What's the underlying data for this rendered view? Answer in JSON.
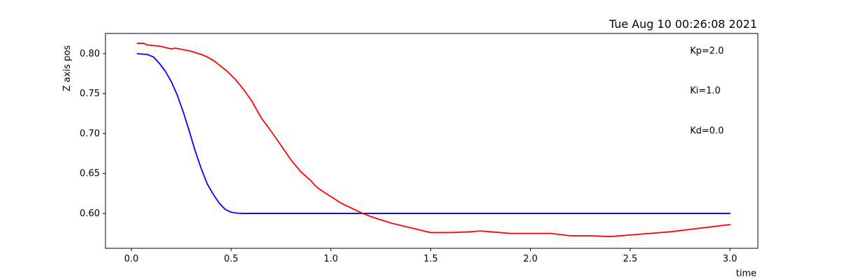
{
  "chart_data": {
    "type": "line",
    "title": "Tue Aug 10 00:26:08 2021",
    "xlabel": "time",
    "ylabel": "Z axis pos",
    "xlim": [
      -0.13,
      3.14
    ],
    "ylim": [
      0.5563,
      0.8253
    ],
    "grid": false,
    "xticks": [
      0.0,
      0.5,
      1.0,
      1.5,
      2.0,
      2.5,
      3.0
    ],
    "xtick_labels": [
      "0.0",
      "0.5",
      "1.0",
      "1.5",
      "2.0",
      "2.5",
      "3.0"
    ],
    "yticks": [
      0.6,
      0.65,
      0.7,
      0.75,
      0.8
    ],
    "ytick_labels": [
      "0.60",
      "0.65",
      "0.70",
      "0.75",
      "0.80"
    ],
    "annotations": [
      {
        "text": "Kp=2.0",
        "x": 2.8,
        "y": 0.8
      },
      {
        "text": "Ki=1.0",
        "x": 2.8,
        "y": 0.75
      },
      {
        "text": "Kd=0.0",
        "x": 2.8,
        "y": 0.7
      }
    ],
    "series": [
      {
        "color": "#0000ff",
        "x": [
          0.03,
          0.08,
          0.11,
          0.14,
          0.17,
          0.2,
          0.23,
          0.26,
          0.29,
          0.32,
          0.35,
          0.38,
          0.41,
          0.44,
          0.47,
          0.5,
          0.53,
          0.56,
          0.6,
          0.7,
          0.9,
          1.2,
          1.5,
          2.0,
          2.5,
          3.0
        ],
        "y": [
          0.8,
          0.799,
          0.796,
          0.788,
          0.778,
          0.765,
          0.748,
          0.727,
          0.703,
          0.678,
          0.656,
          0.637,
          0.624,
          0.613,
          0.605,
          0.6015,
          0.6003,
          0.6,
          0.6,
          0.6,
          0.6,
          0.6,
          0.6,
          0.6,
          0.6,
          0.6
        ]
      },
      {
        "color": "#ff0000",
        "x": [
          0.03,
          0.06,
          0.08,
          0.15,
          0.2,
          0.22,
          0.3,
          0.35,
          0.38,
          0.42,
          0.45,
          0.48,
          0.52,
          0.56,
          0.6,
          0.65,
          0.7,
          0.75,
          0.8,
          0.85,
          0.9,
          0.92,
          0.95,
          1.0,
          1.05,
          1.1,
          1.15,
          1.2,
          1.25,
          1.3,
          1.35,
          1.4,
          1.45,
          1.5,
          1.6,
          1.7,
          1.75,
          1.8,
          1.9,
          2.0,
          2.1,
          2.2,
          2.3,
          2.4,
          2.5,
          2.6,
          2.7,
          2.8,
          2.9,
          3.0
        ],
        "y": [
          0.813,
          0.813,
          0.811,
          0.809,
          0.806,
          0.807,
          0.803,
          0.799,
          0.796,
          0.79,
          0.784,
          0.778,
          0.768,
          0.756,
          0.742,
          0.72,
          0.703,
          0.685,
          0.667,
          0.652,
          0.641,
          0.635,
          0.629,
          0.621,
          0.613,
          0.607,
          0.601,
          0.596,
          0.592,
          0.588,
          0.585,
          0.582,
          0.579,
          0.576,
          0.576,
          0.577,
          0.578,
          0.577,
          0.575,
          0.575,
          0.575,
          0.572,
          0.572,
          0.571,
          0.573,
          0.575,
          0.577,
          0.58,
          0.583,
          0.586
        ]
      }
    ]
  }
}
